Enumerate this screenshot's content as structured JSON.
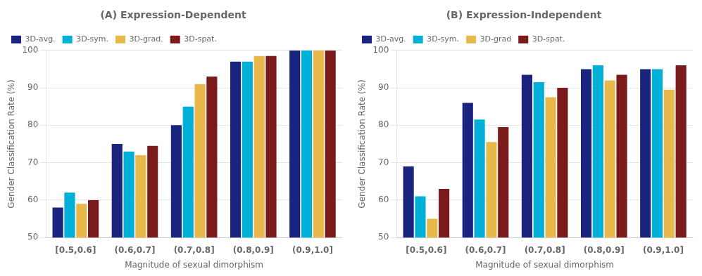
{
  "chart_data": [
    {
      "type": "bar",
      "title": "(A) Expression-Dependent",
      "xlabel": "Magnitude of sexual dimorphism",
      "ylabel": "Gender Classification Rate (%)",
      "categories": [
        "[0.5,0.6]",
        "(0.6,0.7]",
        "(0.7,0.8]",
        "(0.8,0.9]",
        "(0.9,1.0]"
      ],
      "series": [
        {
          "name": "3D-avg.",
          "color": "#1a237e",
          "values": [
            58,
            75,
            80,
            97,
            100
          ]
        },
        {
          "name": "3D-sym.",
          "color": "#00b0d8",
          "values": [
            62,
            73,
            85,
            97,
            100
          ]
        },
        {
          "name": "3D-grad.",
          "color": "#e8b84b",
          "values": [
            59,
            72,
            91,
            98.5,
            100
          ]
        },
        {
          "name": "3D-spat.",
          "color": "#7a1a1a",
          "values": [
            60,
            74.5,
            93,
            98.5,
            100
          ]
        }
      ],
      "ylim": [
        50,
        100
      ],
      "yticks": [
        50,
        60,
        70,
        80,
        90,
        100
      ],
      "grid": true,
      "legend": "upper left"
    },
    {
      "type": "bar",
      "title": "(B) Expression-Independent",
      "xlabel": "Magnitude of sexual dimorphism",
      "ylabel": "Gender Classification Rate (%)",
      "categories": [
        "[0.5,0.6]",
        "(0.6,0.7]",
        "(0.7,0.8]",
        "(0.8,0.9]",
        "(0.9,1.0]"
      ],
      "series": [
        {
          "name": "3D-avg.",
          "color": "#1a237e",
          "values": [
            69,
            86,
            93.5,
            95,
            95
          ]
        },
        {
          "name": "3D-sym.",
          "color": "#00b0d8",
          "values": [
            61,
            81.5,
            91.5,
            96,
            95
          ]
        },
        {
          "name": "3D-grad",
          "color": "#e8b84b",
          "values": [
            55,
            75.5,
            87.5,
            92,
            89.5
          ]
        },
        {
          "name": "3D-spat.",
          "color": "#7a1a1a",
          "values": [
            63,
            79.5,
            90,
            93.5,
            96
          ]
        }
      ],
      "ylim": [
        50,
        100
      ],
      "yticks": [
        50,
        60,
        70,
        80,
        90,
        100
      ],
      "grid": true,
      "legend": "upper left"
    }
  ]
}
